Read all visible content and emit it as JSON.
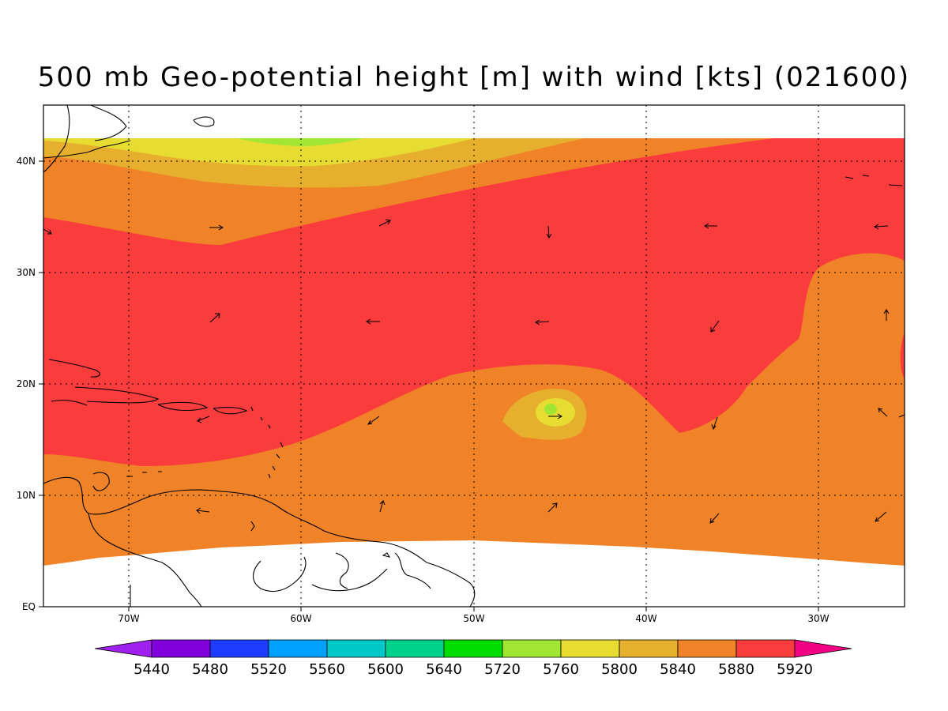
{
  "title": "500 mb Geo-potential height [m] with wind [kts] (021600)",
  "lon_labels": [
    "70W",
    "60W",
    "50W",
    "40W",
    "30W"
  ],
  "lat_labels": [
    "EQ",
    "10N",
    "20N",
    "30N",
    "40N"
  ],
  "colorbar": {
    "labels": [
      "5440",
      "5480",
      "5520",
      "5560",
      "5600",
      "5640",
      "5720",
      "5760",
      "5800",
      "5840",
      "5880",
      "5920"
    ],
    "colors": [
      "#a020f0",
      "#8200dc",
      "#1e3cff",
      "#00a0ff",
      "#00c8c8",
      "#00d28c",
      "#00dc00",
      "#a0e632",
      "#e6dc32",
      "#e6af2d",
      "#f08228",
      "#fa3c3c",
      "#f00082"
    ]
  },
  "fill_colors": {
    "c5760": "#a0e632",
    "c5800": "#e6dc32",
    "c5840": "#e6af2d",
    "c5880": "#f08228",
    "c5920": "#fa3c3c"
  },
  "domain": {
    "lon_range": [
      "75.5W",
      "25.5W"
    ],
    "lat_range": [
      "EQ",
      "42N"
    ]
  },
  "wind_arrows": "sparse wind vectors in kts"
}
